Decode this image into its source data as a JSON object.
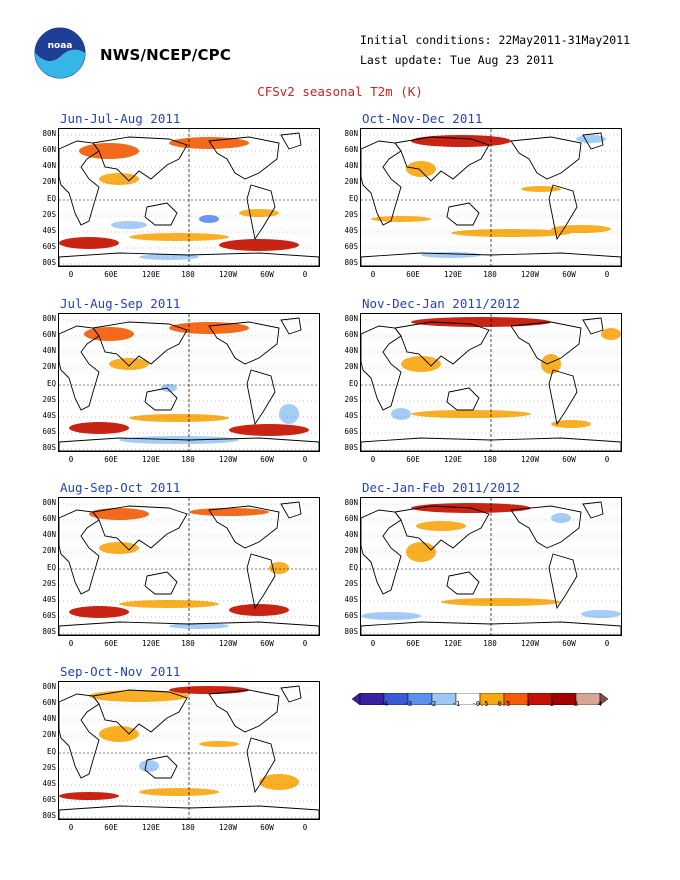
{
  "header": {
    "org": "NWS/NCEP/CPC",
    "initial_conditions": "Initial conditions: 22May2011-31May2011",
    "last_update": "Last update: Tue Aug 23 2011",
    "title": "CFSv2 seasonal T2m (K)",
    "logo": "noaa-logo"
  },
  "axes": {
    "lat_labels": [
      "80N",
      "60N",
      "40N",
      "20N",
      "EQ",
      "20S",
      "40S",
      "60S",
      "80S"
    ],
    "lon_labels": [
      "0",
      "60E",
      "120E",
      "180",
      "120W",
      "60W",
      "0"
    ]
  },
  "panels": [
    {
      "title": "Jun-Jul-Aug 2011"
    },
    {
      "title": "Oct-Nov-Dec 2011"
    },
    {
      "title": "Jul-Aug-Sep 2011"
    },
    {
      "title": "Nov-Dec-Jan 2011/2012"
    },
    {
      "title": "Aug-Sep-Oct 2011"
    },
    {
      "title": "Dec-Jan-Feb 2011/2012"
    },
    {
      "title": "Sep-Oct-Nov 2011"
    }
  ],
  "colorbar": {
    "labels": [
      "-4",
      "-3",
      "-2",
      "-1",
      "-0.5",
      "0.5",
      "1",
      "2",
      "3",
      "4"
    ],
    "colors": [
      "#3a1f9e",
      "#3c5ad6",
      "#5b8ff0",
      "#9cc8f5",
      "#ffffff",
      "#f7a712",
      "#f35d09",
      "#c41000",
      "#a30000",
      "#d7a495",
      "#8a4a3c"
    ]
  }
}
